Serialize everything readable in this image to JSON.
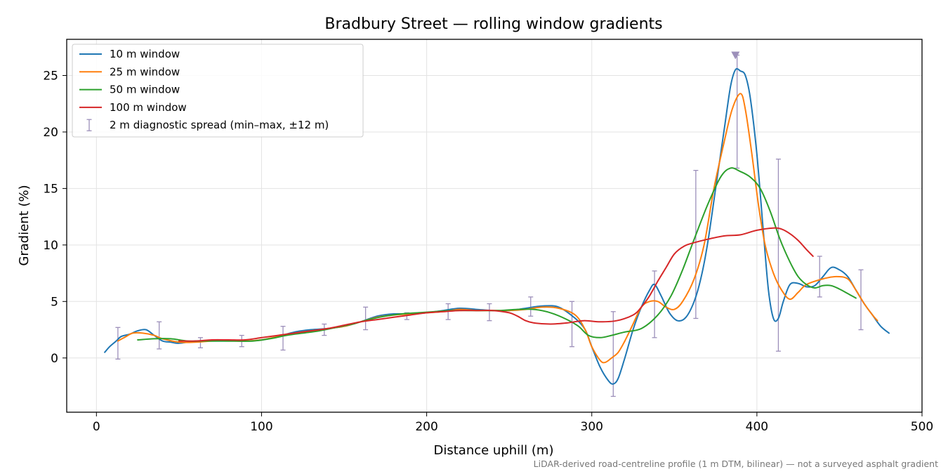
{
  "chart_data": {
    "type": "line",
    "title": "Bradbury Street — rolling window gradients",
    "xlabel": "Distance uphill (m)",
    "ylabel": "Gradient (%)",
    "footnote": "LiDAR-derived road-centreline profile (1 m DTM, bilinear) — not a surveyed asphalt gradient",
    "xlim": [
      -18,
      500
    ],
    "ylim": [
      -4.8,
      28.2
    ],
    "xticks": [
      0,
      100,
      200,
      300,
      400,
      500
    ],
    "yticks": [
      0,
      5,
      10,
      15,
      20,
      25
    ],
    "grid": true,
    "legend_position": "top-left",
    "series": [
      {
        "name": "10 m window",
        "color": "#1f77b4",
        "points": [
          [
            5,
            0.5
          ],
          [
            8,
            1.0
          ],
          [
            12,
            1.5
          ],
          [
            15,
            1.9
          ],
          [
            20,
            2.1
          ],
          [
            25,
            2.4
          ],
          [
            30,
            2.5
          ],
          [
            35,
            2.0
          ],
          [
            40,
            1.5
          ],
          [
            45,
            1.4
          ],
          [
            50,
            1.3
          ],
          [
            60,
            1.5
          ],
          [
            70,
            1.5
          ],
          [
            80,
            1.5
          ],
          [
            90,
            1.5
          ],
          [
            100,
            1.6
          ],
          [
            110,
            1.9
          ],
          [
            120,
            2.3
          ],
          [
            130,
            2.5
          ],
          [
            140,
            2.6
          ],
          [
            150,
            2.8
          ],
          [
            160,
            3.2
          ],
          [
            170,
            3.7
          ],
          [
            180,
            3.9
          ],
          [
            190,
            3.9
          ],
          [
            200,
            4.0
          ],
          [
            210,
            4.2
          ],
          [
            220,
            4.4
          ],
          [
            230,
            4.3
          ],
          [
            240,
            4.2
          ],
          [
            250,
            4.2
          ],
          [
            260,
            4.4
          ],
          [
            270,
            4.6
          ],
          [
            280,
            4.5
          ],
          [
            290,
            3.5
          ],
          [
            296,
            2.5
          ],
          [
            300,
            1.0
          ],
          [
            305,
            -0.8
          ],
          [
            310,
            -2.0
          ],
          [
            313,
            -2.3
          ],
          [
            316,
            -1.8
          ],
          [
            320,
            0.0
          ],
          [
            325,
            2.5
          ],
          [
            330,
            4.5
          ],
          [
            335,
            6.0
          ],
          [
            338,
            6.5
          ],
          [
            342,
            5.5
          ],
          [
            347,
            4.0
          ],
          [
            352,
            3.3
          ],
          [
            357,
            3.6
          ],
          [
            362,
            5.0
          ],
          [
            366,
            7.0
          ],
          [
            370,
            10.0
          ],
          [
            375,
            15.0
          ],
          [
            380,
            20.0
          ],
          [
            384,
            24.0
          ],
          [
            387,
            25.5
          ],
          [
            390,
            25.4
          ],
          [
            393,
            25.0
          ],
          [
            396,
            23.0
          ],
          [
            400,
            18.0
          ],
          [
            404,
            11.0
          ],
          [
            407,
            6.0
          ],
          [
            410,
            3.5
          ],
          [
            413,
            3.5
          ],
          [
            416,
            5.0
          ],
          [
            420,
            6.5
          ],
          [
            425,
            6.6
          ],
          [
            430,
            6.3
          ],
          [
            435,
            6.4
          ],
          [
            440,
            7.2
          ],
          [
            445,
            8.0
          ],
          [
            450,
            7.8
          ],
          [
            455,
            7.2
          ],
          [
            460,
            6.0
          ],
          [
            465,
            4.8
          ],
          [
            470,
            3.8
          ],
          [
            475,
            2.8
          ],
          [
            480,
            2.2
          ]
        ]
      },
      {
        "name": "25 m window",
        "color": "#ff7f0e",
        "points": [
          [
            13,
            1.5
          ],
          [
            18,
            1.9
          ],
          [
            22,
            2.2
          ],
          [
            28,
            2.2
          ],
          [
            35,
            2.0
          ],
          [
            40,
            1.7
          ],
          [
            50,
            1.4
          ],
          [
            60,
            1.4
          ],
          [
            70,
            1.5
          ],
          [
            80,
            1.5
          ],
          [
            90,
            1.5
          ],
          [
            100,
            1.6
          ],
          [
            110,
            1.9
          ],
          [
            120,
            2.2
          ],
          [
            130,
            2.4
          ],
          [
            140,
            2.6
          ],
          [
            150,
            2.8
          ],
          [
            160,
            3.2
          ],
          [
            170,
            3.6
          ],
          [
            180,
            3.8
          ],
          [
            190,
            3.9
          ],
          [
            200,
            4.0
          ],
          [
            210,
            4.1
          ],
          [
            220,
            4.3
          ],
          [
            230,
            4.2
          ],
          [
            240,
            4.2
          ],
          [
            250,
            4.2
          ],
          [
            260,
            4.3
          ],
          [
            270,
            4.5
          ],
          [
            280,
            4.4
          ],
          [
            290,
            3.8
          ],
          [
            296,
            2.5
          ],
          [
            300,
            1.0
          ],
          [
            305,
            -0.2
          ],
          [
            308,
            -0.4
          ],
          [
            312,
            0.0
          ],
          [
            316,
            0.5
          ],
          [
            320,
            1.5
          ],
          [
            325,
            3.0
          ],
          [
            330,
            4.5
          ],
          [
            335,
            5.0
          ],
          [
            340,
            5.0
          ],
          [
            345,
            4.5
          ],
          [
            350,
            4.3
          ],
          [
            355,
            5.0
          ],
          [
            362,
            7.0
          ],
          [
            368,
            10.0
          ],
          [
            374,
            15.0
          ],
          [
            380,
            19.0
          ],
          [
            385,
            22.0
          ],
          [
            390,
            23.4
          ],
          [
            393,
            22.0
          ],
          [
            397,
            18.0
          ],
          [
            401,
            13.5
          ],
          [
            405,
            10.0
          ],
          [
            410,
            7.5
          ],
          [
            415,
            6.0
          ],
          [
            420,
            5.2
          ],
          [
            425,
            5.8
          ],
          [
            430,
            6.5
          ],
          [
            440,
            7.0
          ],
          [
            448,
            7.2
          ],
          [
            455,
            7.0
          ],
          [
            460,
            6.0
          ],
          [
            465,
            4.8
          ],
          [
            470,
            3.8
          ],
          [
            473,
            3.3
          ]
        ]
      },
      {
        "name": "50 m window",
        "color": "#2ca02c",
        "points": [
          [
            25,
            1.6
          ],
          [
            35,
            1.7
          ],
          [
            45,
            1.7
          ],
          [
            55,
            1.5
          ],
          [
            65,
            1.5
          ],
          [
            75,
            1.5
          ],
          [
            85,
            1.5
          ],
          [
            95,
            1.5
          ],
          [
            105,
            1.7
          ],
          [
            115,
            2.0
          ],
          [
            125,
            2.2
          ],
          [
            135,
            2.4
          ],
          [
            145,
            2.7
          ],
          [
            155,
            3.0
          ],
          [
            165,
            3.4
          ],
          [
            175,
            3.7
          ],
          [
            185,
            3.9
          ],
          [
            195,
            4.0
          ],
          [
            205,
            4.1
          ],
          [
            215,
            4.2
          ],
          [
            225,
            4.2
          ],
          [
            235,
            4.2
          ],
          [
            245,
            4.2
          ],
          [
            255,
            4.3
          ],
          [
            265,
            4.3
          ],
          [
            275,
            4.0
          ],
          [
            285,
            3.4
          ],
          [
            292,
            2.8
          ],
          [
            298,
            2.0
          ],
          [
            305,
            1.8
          ],
          [
            312,
            2.0
          ],
          [
            320,
            2.3
          ],
          [
            330,
            2.6
          ],
          [
            340,
            3.8
          ],
          [
            348,
            5.5
          ],
          [
            355,
            7.8
          ],
          [
            362,
            10.5
          ],
          [
            370,
            13.5
          ],
          [
            378,
            16.0
          ],
          [
            384,
            16.8
          ],
          [
            390,
            16.5
          ],
          [
            396,
            16.0
          ],
          [
            402,
            15.0
          ],
          [
            408,
            13.0
          ],
          [
            414,
            10.5
          ],
          [
            420,
            8.5
          ],
          [
            425,
            7.2
          ],
          [
            430,
            6.5
          ],
          [
            435,
            6.2
          ],
          [
            440,
            6.4
          ],
          [
            445,
            6.4
          ],
          [
            450,
            6.1
          ],
          [
            455,
            5.7
          ],
          [
            460,
            5.3
          ]
        ]
      },
      {
        "name": "100 m window",
        "color": "#d62728",
        "points": [
          [
            50,
            1.5
          ],
          [
            60,
            1.5
          ],
          [
            70,
            1.6
          ],
          [
            80,
            1.6
          ],
          [
            90,
            1.6
          ],
          [
            100,
            1.8
          ],
          [
            110,
            2.0
          ],
          [
            120,
            2.2
          ],
          [
            130,
            2.4
          ],
          [
            140,
            2.6
          ],
          [
            150,
            2.9
          ],
          [
            160,
            3.2
          ],
          [
            170,
            3.4
          ],
          [
            180,
            3.6
          ],
          [
            190,
            3.8
          ],
          [
            200,
            4.0
          ],
          [
            210,
            4.1
          ],
          [
            220,
            4.2
          ],
          [
            230,
            4.2
          ],
          [
            240,
            4.2
          ],
          [
            250,
            4.0
          ],
          [
            255,
            3.7
          ],
          [
            260,
            3.3
          ],
          [
            265,
            3.1
          ],
          [
            275,
            3.0
          ],
          [
            285,
            3.1
          ],
          [
            295,
            3.3
          ],
          [
            305,
            3.2
          ],
          [
            315,
            3.3
          ],
          [
            325,
            3.8
          ],
          [
            330,
            4.5
          ],
          [
            335,
            5.5
          ],
          [
            340,
            6.8
          ],
          [
            345,
            8.0
          ],
          [
            350,
            9.2
          ],
          [
            356,
            9.9
          ],
          [
            362,
            10.2
          ],
          [
            370,
            10.5
          ],
          [
            380,
            10.8
          ],
          [
            390,
            10.9
          ],
          [
            400,
            11.3
          ],
          [
            410,
            11.5
          ],
          [
            415,
            11.4
          ],
          [
            420,
            11.0
          ],
          [
            425,
            10.4
          ],
          [
            430,
            9.6
          ],
          [
            434,
            9.0
          ]
        ]
      }
    ],
    "diagnostic_spread": {
      "name": "2 m diagnostic spread (min–max, ±12 m)",
      "color": "#9c8fba",
      "bars": [
        [
          13,
          -0.1,
          2.7
        ],
        [
          38,
          0.8,
          3.2
        ],
        [
          63,
          0.9,
          1.8
        ],
        [
          88,
          1.0,
          2.0
        ],
        [
          113,
          0.7,
          2.8
        ],
        [
          138,
          2.0,
          3.0
        ],
        [
          163,
          2.5,
          4.5
        ],
        [
          188,
          3.4,
          4.0
        ],
        [
          213,
          3.4,
          4.8
        ],
        [
          238,
          3.3,
          4.8
        ],
        [
          263,
          3.7,
          5.4
        ],
        [
          288,
          1.0,
          5.0
        ],
        [
          313,
          -3.4,
          4.1
        ],
        [
          338,
          1.8,
          7.7
        ],
        [
          363,
          3.5,
          16.6
        ],
        [
          388,
          16.8,
          26.8
        ],
        [
          413,
          0.6,
          17.6
        ],
        [
          438,
          5.4,
          9.0
        ],
        [
          463,
          2.5,
          7.8
        ]
      ],
      "marker": [
        387,
        26.8
      ]
    }
  }
}
